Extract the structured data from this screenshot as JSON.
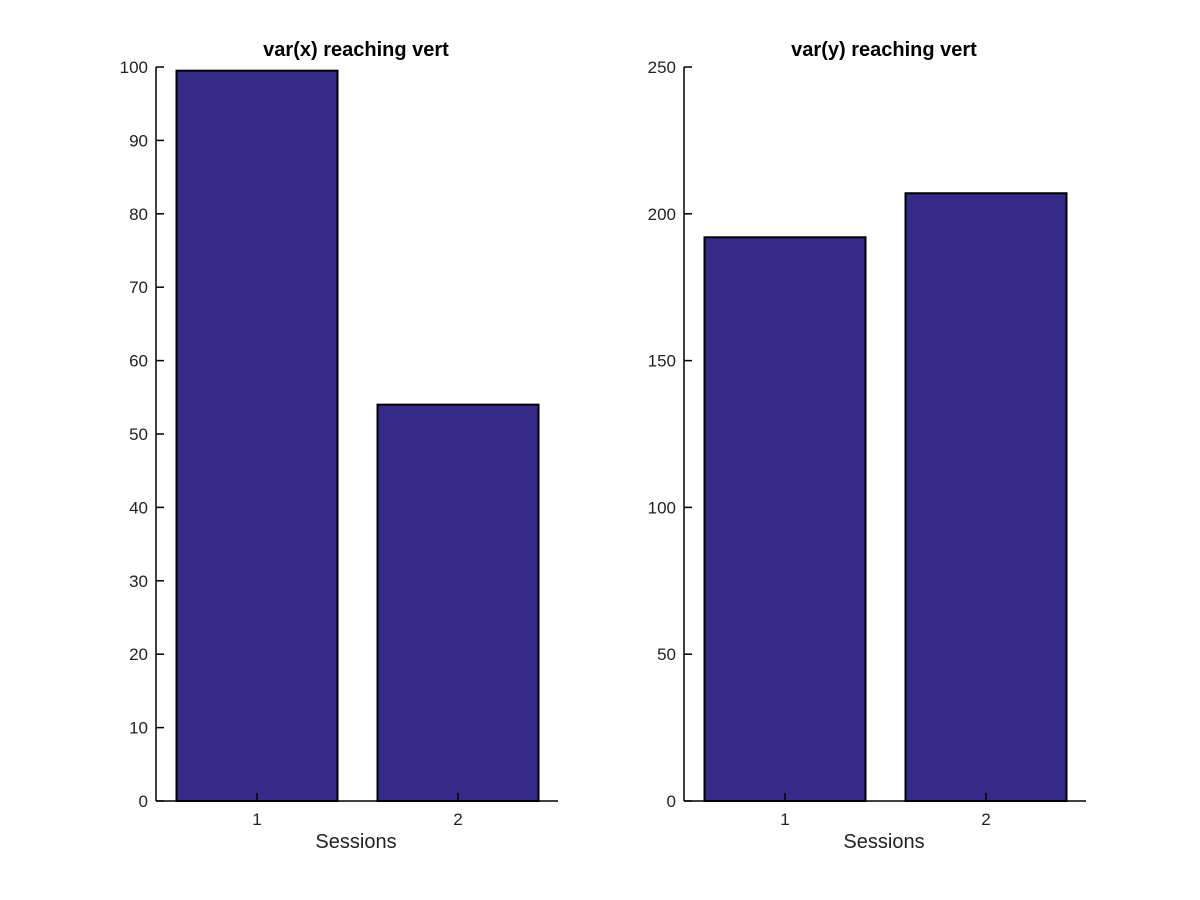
{
  "chart_data": [
    {
      "type": "bar",
      "title": "var(x) reaching vert",
      "categories": [
        "1",
        "2"
      ],
      "values": [
        99.5,
        54
      ],
      "xlabel": "Sessions",
      "ylabel": "",
      "ylim": [
        0,
        100
      ],
      "yticks": [
        "0",
        "10",
        "20",
        "30",
        "40",
        "50",
        "60",
        "70",
        "80",
        "90",
        "100"
      ],
      "grid": false,
      "bar_color": "#352a87"
    },
    {
      "type": "bar",
      "title": "var(y) reaching vert",
      "categories": [
        "1",
        "2"
      ],
      "values": [
        192,
        207
      ],
      "xlabel": "Sessions",
      "ylabel": "",
      "ylim": [
        0,
        250
      ],
      "yticks": [
        "0",
        "50",
        "100",
        "150",
        "200",
        "250"
      ],
      "grid": false,
      "bar_color": "#352a87"
    }
  ]
}
